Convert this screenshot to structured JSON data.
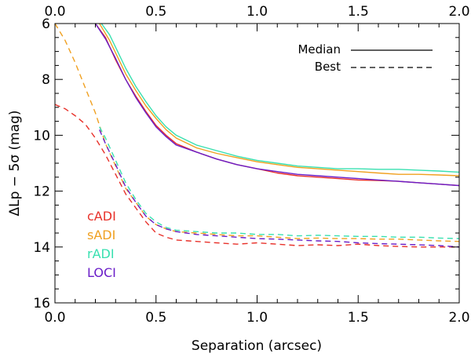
{
  "chart_data": {
    "type": "line",
    "title": "",
    "xlabel": "Separation (arcsec)",
    "ylabel": "ΔLp − 5σ (mag)",
    "xlim": [
      0.0,
      2.0
    ],
    "ylim": [
      16,
      6
    ],
    "x_ticks": [
      "0.0",
      "0.5",
      "1.0",
      "1.5",
      "2.0"
    ],
    "y_ticks": [
      "6",
      "8",
      "10",
      "12",
      "14",
      "16"
    ],
    "legend": {
      "position": "top-right",
      "entries": [
        {
          "label": "Median",
          "style": "solid"
        },
        {
          "label": "Best",
          "style": "dashed"
        }
      ]
    },
    "method_labels": [
      {
        "label": "cADI",
        "color": "#e8312a"
      },
      {
        "label": "sADI",
        "color": "#f0a020"
      },
      {
        "label": "rADI",
        "color": "#38e0b0"
      },
      {
        "label": "LOCI",
        "color": "#6a1ec8"
      }
    ],
    "series": [
      {
        "name": "cADI median",
        "color": "#e8312a",
        "style": "solid",
        "x": [
          0.2,
          0.25,
          0.3,
          0.35,
          0.4,
          0.45,
          0.5,
          0.55,
          0.6,
          0.7,
          0.8,
          0.9,
          1.0,
          1.1,
          1.2,
          1.3,
          1.4,
          1.5,
          1.6,
          1.7,
          1.8,
          1.9,
          2.0
        ],
        "y": [
          6.0,
          6.5,
          7.3,
          8.0,
          8.6,
          9.15,
          9.65,
          10.0,
          10.3,
          10.6,
          10.85,
          11.05,
          11.2,
          11.35,
          11.45,
          11.5,
          11.55,
          11.6,
          11.62,
          11.65,
          11.7,
          11.75,
          11.8
        ]
      },
      {
        "name": "sADI median",
        "color": "#f0a020",
        "style": "solid",
        "x": [
          0.22,
          0.27,
          0.3,
          0.35,
          0.4,
          0.45,
          0.5,
          0.55,
          0.6,
          0.7,
          0.8,
          0.9,
          1.0,
          1.1,
          1.2,
          1.3,
          1.4,
          1.5,
          1.6,
          1.7,
          1.8,
          1.9,
          2.0
        ],
        "y": [
          6.0,
          6.6,
          7.05,
          7.8,
          8.4,
          8.95,
          9.4,
          9.8,
          10.1,
          10.45,
          10.65,
          10.8,
          10.95,
          11.05,
          11.15,
          11.2,
          11.25,
          11.3,
          11.35,
          11.4,
          11.4,
          11.42,
          11.45
        ]
      },
      {
        "name": "rADI median",
        "color": "#38e0b0",
        "style": "solid",
        "x": [
          0.23,
          0.27,
          0.3,
          0.35,
          0.4,
          0.45,
          0.5,
          0.55,
          0.6,
          0.7,
          0.8,
          0.9,
          1.0,
          1.1,
          1.2,
          1.3,
          1.4,
          1.5,
          1.6,
          1.7,
          1.8,
          1.9,
          2.0
        ],
        "y": [
          6.0,
          6.4,
          6.85,
          7.6,
          8.25,
          8.8,
          9.3,
          9.7,
          10.0,
          10.35,
          10.55,
          10.75,
          10.9,
          11.0,
          11.1,
          11.15,
          11.2,
          11.2,
          11.22,
          11.22,
          11.25,
          11.28,
          11.32
        ]
      },
      {
        "name": "LOCI median",
        "color": "#6a1ec8",
        "style": "solid",
        "x": [
          0.2,
          0.25,
          0.3,
          0.35,
          0.4,
          0.45,
          0.5,
          0.55,
          0.6,
          0.7,
          0.8,
          0.9,
          1.0,
          1.1,
          1.2,
          1.3,
          1.4,
          1.5,
          1.6,
          1.7,
          1.8,
          1.9,
          2.0
        ],
        "y": [
          6.0,
          6.55,
          7.25,
          8.0,
          8.65,
          9.2,
          9.7,
          10.05,
          10.35,
          10.6,
          10.85,
          11.05,
          11.2,
          11.3,
          11.4,
          11.45,
          11.5,
          11.55,
          11.6,
          11.65,
          11.7,
          11.75,
          11.8
        ]
      },
      {
        "name": "cADI best",
        "color": "#e8312a",
        "style": "dashed",
        "x": [
          0.0,
          0.05,
          0.1,
          0.15,
          0.2,
          0.25,
          0.3,
          0.35,
          0.4,
          0.45,
          0.5,
          0.55,
          0.6,
          0.7,
          0.8,
          0.9,
          1.0,
          1.1,
          1.2,
          1.3,
          1.4,
          1.5,
          1.6,
          1.7,
          1.8,
          1.9,
          2.0
        ],
        "y": [
          8.9,
          9.05,
          9.3,
          9.6,
          10.1,
          10.7,
          11.4,
          12.1,
          12.6,
          13.1,
          13.5,
          13.65,
          13.75,
          13.8,
          13.85,
          13.9,
          13.85,
          13.9,
          13.95,
          13.92,
          13.95,
          13.9,
          13.95,
          13.98,
          14.0,
          14.0,
          14.0
        ]
      },
      {
        "name": "sADI best",
        "color": "#f0a020",
        "style": "dashed",
        "x": [
          0.0,
          0.05,
          0.1,
          0.15,
          0.2,
          0.25,
          0.3,
          0.35,
          0.4,
          0.45,
          0.5,
          0.55,
          0.6,
          0.7,
          0.8,
          0.9,
          1.0,
          1.1,
          1.2,
          1.3,
          1.4,
          1.5,
          1.6,
          1.7,
          1.8,
          1.9,
          2.0
        ],
        "y": [
          6.0,
          6.6,
          7.4,
          8.3,
          9.2,
          10.3,
          11.1,
          11.9,
          12.4,
          12.9,
          13.2,
          13.35,
          13.45,
          13.5,
          13.55,
          13.6,
          13.6,
          13.65,
          13.7,
          13.68,
          13.7,
          13.7,
          13.72,
          13.72,
          13.75,
          13.78,
          13.8
        ]
      },
      {
        "name": "rADI best",
        "color": "#38e0b0",
        "style": "dashed",
        "x": [
          0.22,
          0.25,
          0.3,
          0.35,
          0.4,
          0.45,
          0.5,
          0.55,
          0.6,
          0.7,
          0.8,
          0.9,
          1.0,
          1.1,
          1.2,
          1.3,
          1.4,
          1.5,
          1.6,
          1.7,
          1.8,
          1.9,
          2.0
        ],
        "y": [
          9.7,
          10.1,
          10.9,
          11.7,
          12.3,
          12.8,
          13.1,
          13.3,
          13.4,
          13.45,
          13.5,
          13.5,
          13.55,
          13.55,
          13.6,
          13.58,
          13.6,
          13.62,
          13.62,
          13.65,
          13.65,
          13.68,
          13.7
        ]
      },
      {
        "name": "LOCI best",
        "color": "#6a1ec8",
        "style": "dashed",
        "x": [
          0.22,
          0.25,
          0.3,
          0.35,
          0.4,
          0.45,
          0.5,
          0.55,
          0.6,
          0.7,
          0.8,
          0.9,
          1.0,
          1.1,
          1.2,
          1.3,
          1.4,
          1.5,
          1.6,
          1.7,
          1.8,
          1.9,
          2.0
        ],
        "y": [
          9.8,
          10.3,
          11.05,
          11.85,
          12.4,
          12.9,
          13.2,
          13.35,
          13.45,
          13.55,
          13.6,
          13.65,
          13.7,
          13.72,
          13.75,
          13.78,
          13.8,
          13.85,
          13.88,
          13.9,
          13.92,
          13.95,
          14.0
        ]
      }
    ]
  }
}
